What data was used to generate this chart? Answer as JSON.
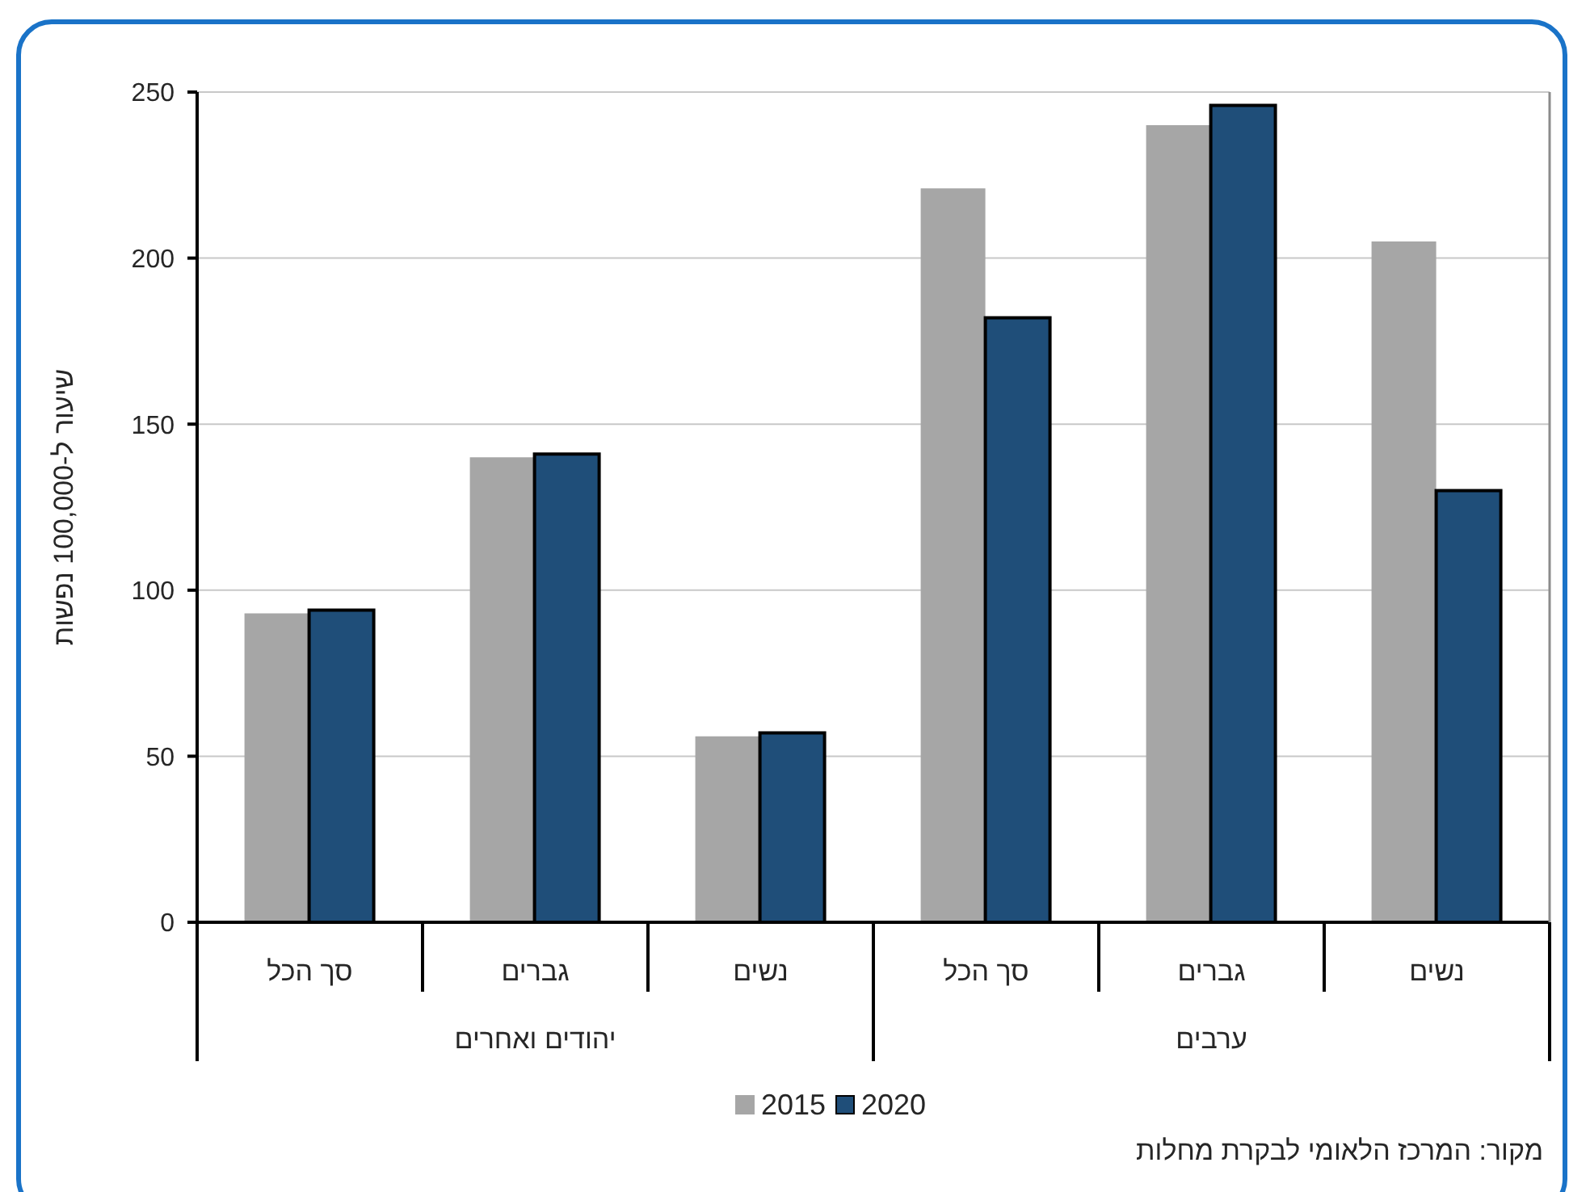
{
  "chart_data": {
    "type": "bar",
    "ylabel": "שיעור ל-100,000 נפשות",
    "categories": [
      "סך הכל",
      "גברים",
      "נשים",
      "סך הכל",
      "גברים",
      "נשים"
    ],
    "series": [
      {
        "name": "2015",
        "color": "#a6a6a6",
        "values": [
          93,
          140,
          56,
          221,
          240,
          205
        ]
      },
      {
        "name": "2020",
        "color": "#1f4e79",
        "values": [
          94,
          141,
          57,
          182,
          246,
          130
        ]
      }
    ],
    "ylim": [
      0,
      250
    ],
    "yticks": [
      0,
      50,
      100,
      150,
      200,
      250
    ],
    "grid": "y",
    "legend": "bottom",
    "annotations": [
      "יהודים ואחרים",
      "ערבים",
      "מקור: המרכז הלאומי לבקרת מחלות"
    ]
  }
}
